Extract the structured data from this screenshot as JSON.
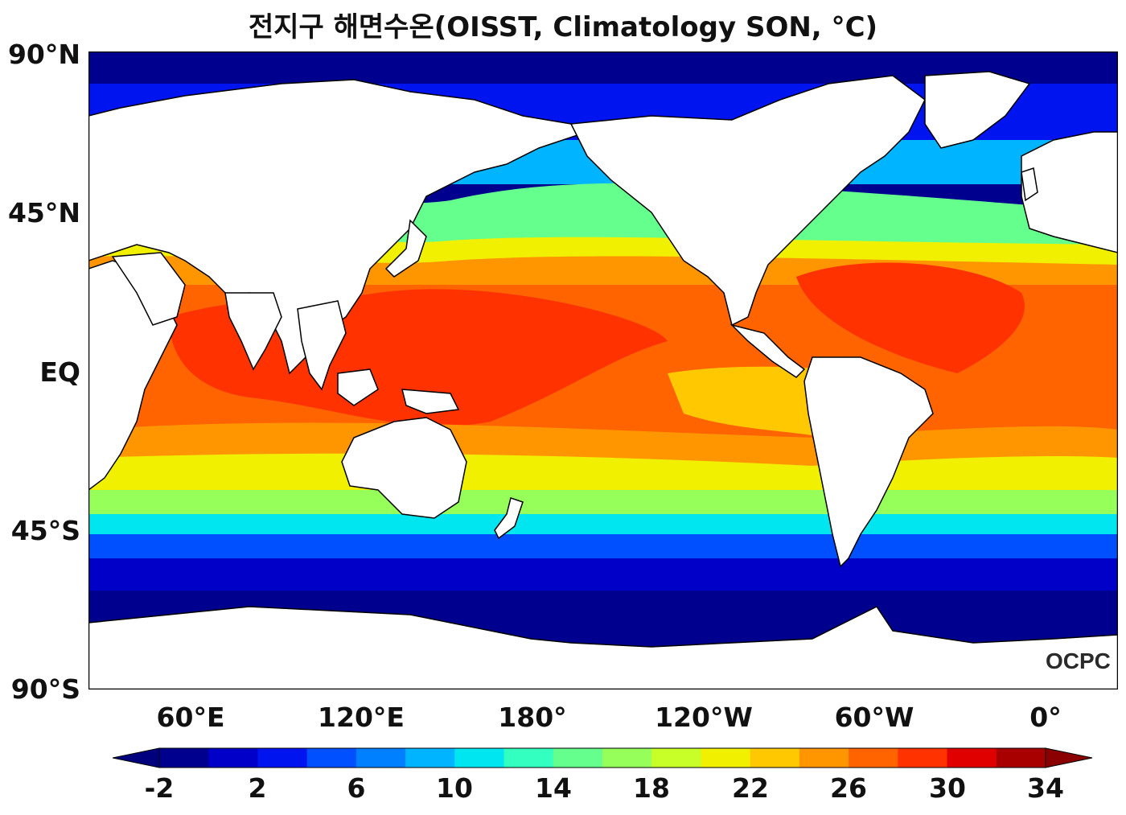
{
  "title": "전지구 해면수온(OISST, Climatology SON, °C)",
  "axes": {
    "y_ticks": [
      "90°N",
      "45°N",
      "EQ",
      "45°S",
      "90°S"
    ],
    "x_ticks": [
      "60°E",
      "120°E",
      "180°",
      "120°W",
      "60°W",
      "0°"
    ]
  },
  "colorbar": {
    "ticks": [
      "-2",
      "2",
      "6",
      "10",
      "14",
      "18",
      "22",
      "26",
      "30",
      "34"
    ],
    "colors": [
      "#00008f",
      "#0000c8",
      "#0014f0",
      "#0050ff",
      "#0080ff",
      "#00b4ff",
      "#00e6f0",
      "#32ffc0",
      "#64ff8c",
      "#96ff5a",
      "#c8ff28",
      "#f0f000",
      "#ffc800",
      "#ff9600",
      "#ff6400",
      "#ff3200",
      "#e00000",
      "#a80000"
    ],
    "under_color": "#00007f",
    "over_color": "#8b0000"
  },
  "watermark": "OCPC",
  "colors": {
    "ocean_cold": "#00008f",
    "land": "#ffffff",
    "coast": "#000000"
  }
}
